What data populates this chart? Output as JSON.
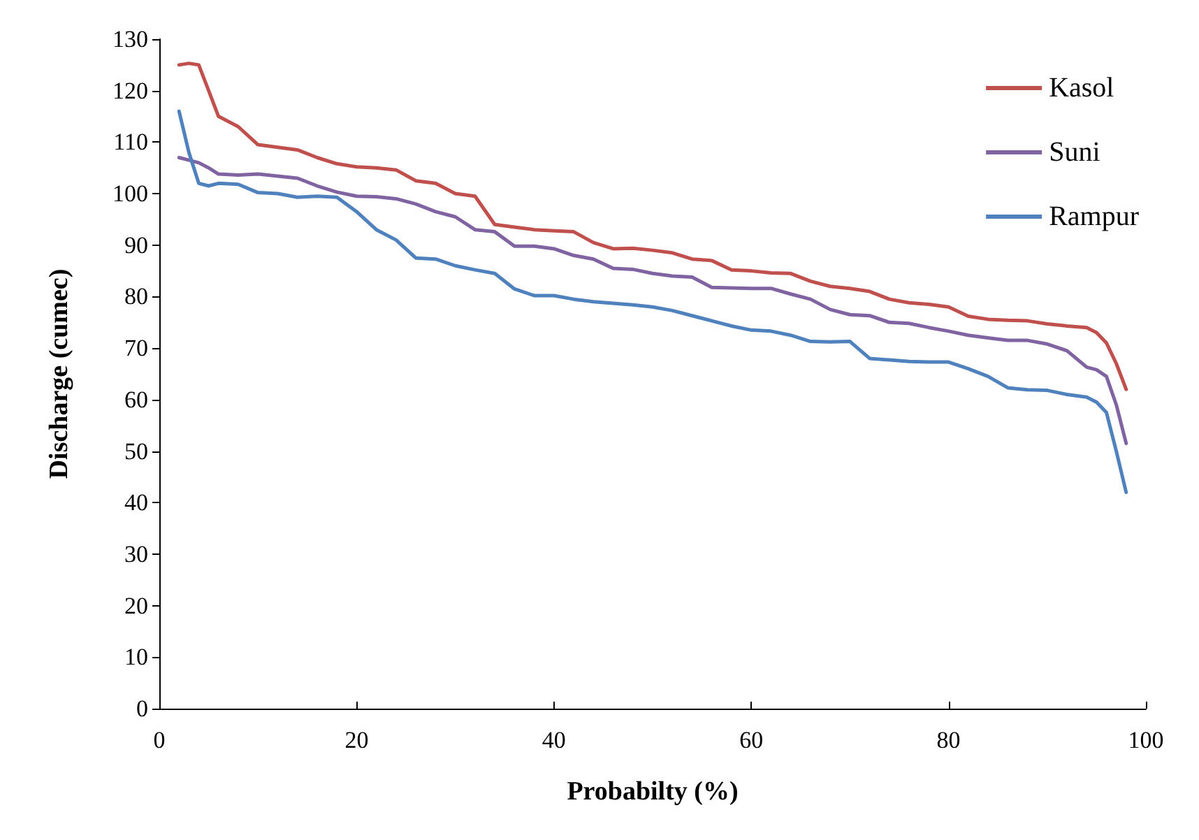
{
  "chart_data": {
    "type": "line",
    "xlabel": "Probabilty (%)",
    "ylabel": "Discharge (cumec)",
    "x": [
      2,
      3,
      4,
      5,
      6,
      8,
      10,
      12,
      14,
      16,
      18,
      20,
      22,
      24,
      26,
      28,
      30,
      32,
      34,
      36,
      38,
      40,
      42,
      44,
      46,
      48,
      50,
      52,
      54,
      56,
      58,
      60,
      62,
      64,
      66,
      68,
      70,
      72,
      74,
      76,
      78,
      80,
      82,
      84,
      86,
      88,
      90,
      92,
      94,
      95,
      96,
      97,
      98
    ],
    "series": [
      {
        "name": "Kasol",
        "color": "#c0504d",
        "values": [
          125,
          125.3,
          125,
          120,
          115,
          113,
          109.5,
          109,
          108.5,
          107,
          105.8,
          105.2,
          105,
          104.6,
          102.5,
          102,
          100,
          99.5,
          94,
          93.5,
          93,
          92.8,
          92.6,
          90.5,
          89.3,
          89.4,
          89,
          88.5,
          87.3,
          87,
          85.2,
          85,
          84.6,
          84.5,
          83,
          82,
          81.6,
          81,
          79.5,
          78.8,
          78.5,
          78,
          76.2,
          75.6,
          75.4,
          75.3,
          74.7,
          74.3,
          74,
          73,
          71,
          67,
          62
        ]
      },
      {
        "name": "Suni",
        "color": "#8064a2",
        "values": [
          107,
          106.5,
          106,
          105,
          103.8,
          103.6,
          103.8,
          103.4,
          103,
          101.5,
          100.3,
          99.5,
          99.4,
          99,
          98,
          96.5,
          95.5,
          93,
          92.6,
          89.8,
          89.8,
          89.3,
          88,
          87.3,
          85.5,
          85.3,
          84.5,
          84,
          83.8,
          81.8,
          81.7,
          81.6,
          81.6,
          80.5,
          79.5,
          77.5,
          76.5,
          76.3,
          75,
          74.8,
          74,
          73.3,
          72.5,
          72,
          71.5,
          71.5,
          70.8,
          69.5,
          66.3,
          65.8,
          64.5,
          59,
          51.5
        ]
      },
      {
        "name": "Rampur",
        "color": "#4f81bd",
        "values": [
          116,
          108,
          102,
          101.5,
          102,
          101.8,
          100.2,
          100,
          99.3,
          99.5,
          99.3,
          96.5,
          93,
          91,
          87.5,
          87.3,
          86,
          85.2,
          84.5,
          81.5,
          80.2,
          80.2,
          79.5,
          79,
          78.7,
          78.4,
          78,
          77.3,
          76.3,
          75.3,
          74.3,
          73.5,
          73.3,
          72.5,
          71.3,
          71.2,
          71.3,
          68,
          67.7,
          67.4,
          67.3,
          67.3,
          66,
          64.5,
          62.3,
          61.9,
          61.8,
          61,
          60.5,
          59.5,
          57.5,
          50,
          42
        ]
      }
    ],
    "xlim": [
      0,
      100
    ],
    "xticks": [
      0,
      20,
      40,
      60,
      80,
      100
    ],
    "ylim": [
      0,
      130
    ],
    "yticks": [
      0,
      10,
      20,
      30,
      40,
      50,
      60,
      70,
      80,
      90,
      100,
      110,
      120,
      130
    ],
    "grid": false,
    "legend": "top right",
    "marker": "none",
    "line_style": "solid"
  }
}
